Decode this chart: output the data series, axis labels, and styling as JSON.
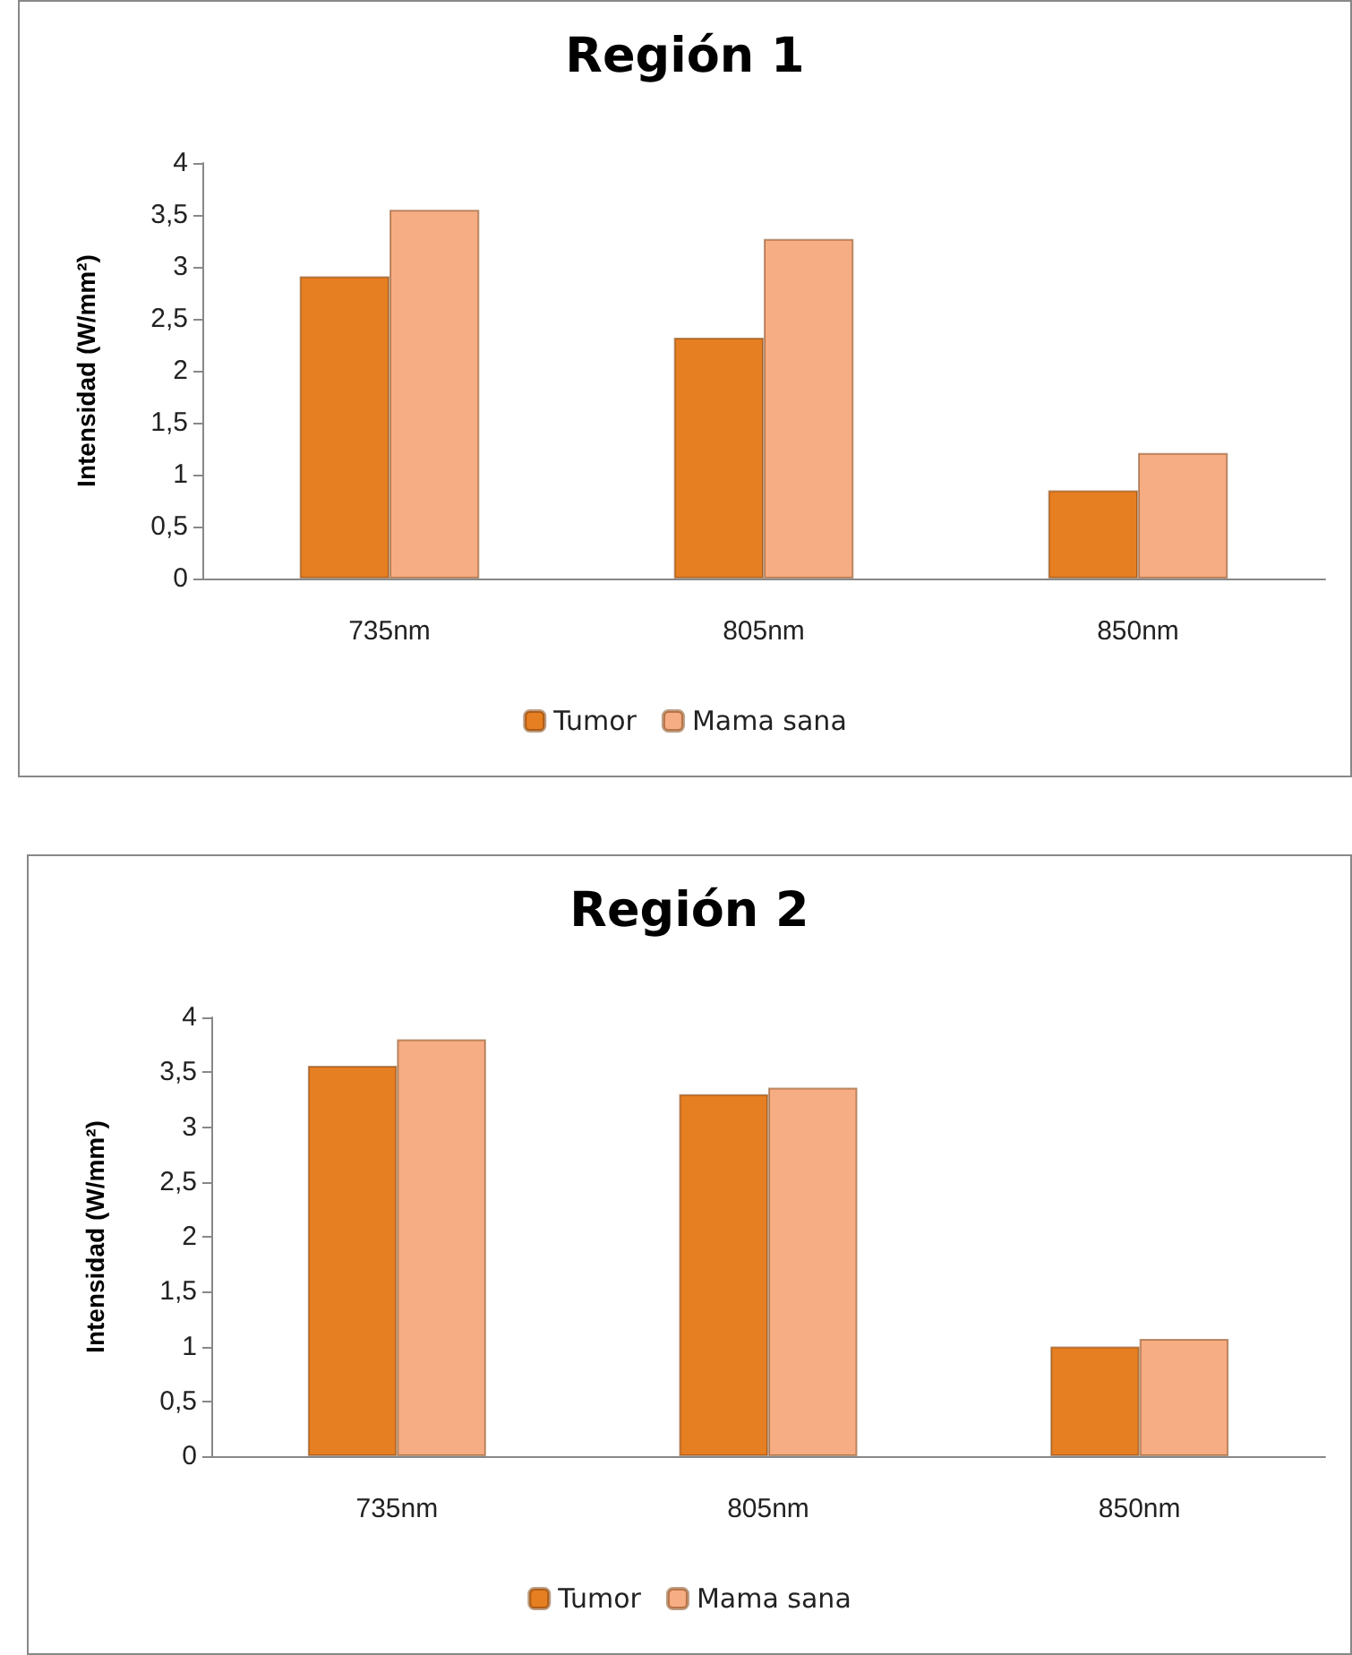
{
  "chart_data": [
    {
      "type": "bar",
      "title": "Región 1",
      "ylabel": "Intensidad (W/mm²)",
      "categories": [
        "735nm",
        "805nm",
        "850nm"
      ],
      "series": [
        {
          "name": "Tumor",
          "color": "#e67e22",
          "values": [
            2.91,
            2.32,
            0.85
          ]
        },
        {
          "name": "Mama sana",
          "color": "#f7ad84",
          "values": [
            3.55,
            3.27,
            1.21
          ]
        }
      ],
      "ylim": [
        0,
        4
      ],
      "yticks": [
        0,
        {
          "value": 0.5,
          "label": "0,5"
        },
        1,
        {
          "value": 1.5,
          "label": "1,5"
        },
        2,
        {
          "value": 2.5,
          "label": "2,5"
        },
        3,
        {
          "value": 3.5,
          "label": "3,5"
        },
        4
      ],
      "grid": false,
      "legend": "bottom"
    },
    {
      "type": "bar",
      "title": "Región 2",
      "ylabel": "Intensidad (W/mm²)",
      "categories": [
        "735nm",
        "805nm",
        "850nm"
      ],
      "series": [
        {
          "name": "Tumor",
          "color": "#e67e22",
          "values": [
            3.56,
            3.3,
            1.0
          ]
        },
        {
          "name": "Mama sana",
          "color": "#f7ad84",
          "values": [
            3.8,
            3.36,
            1.07
          ]
        }
      ],
      "ylim": [
        0,
        4
      ],
      "yticks": [
        0,
        {
          "value": 0.5,
          "label": "0,5"
        },
        1,
        {
          "value": 1.5,
          "label": "1,5"
        },
        2,
        {
          "value": 2.5,
          "label": "2,5"
        },
        3,
        {
          "value": 3.5,
          "label": "3,5"
        },
        4
      ],
      "grid": false,
      "legend": "bottom"
    }
  ]
}
